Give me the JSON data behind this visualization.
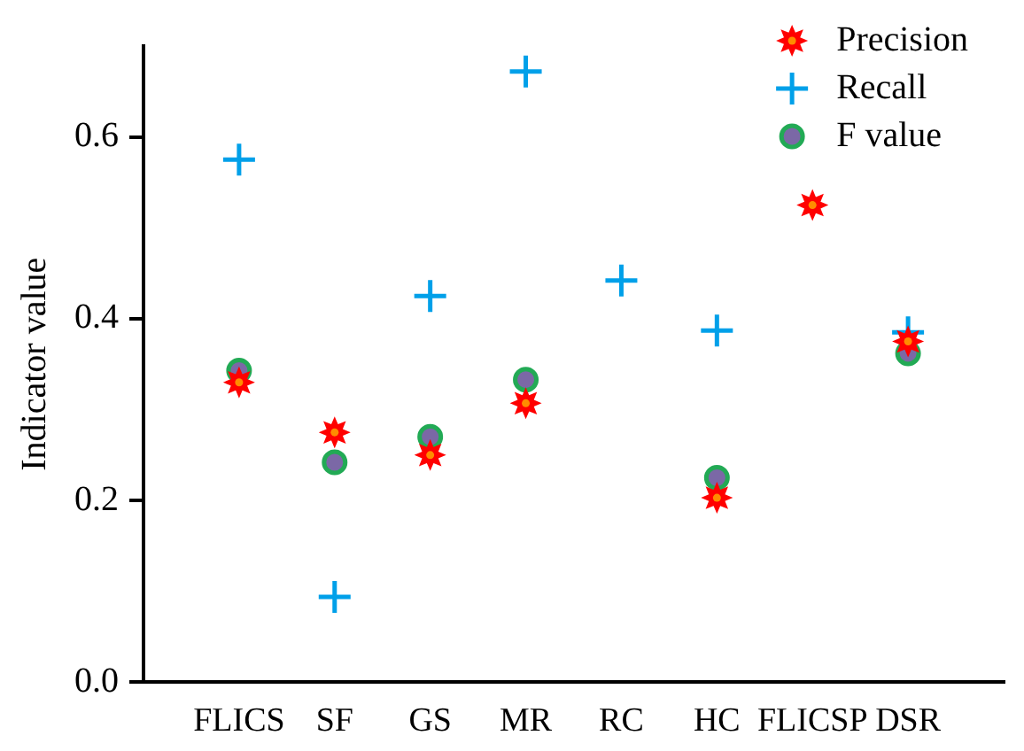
{
  "chart_data": {
    "type": "scatter",
    "ylabel": "Indicator value",
    "categories": [
      "FLICS",
      "SF",
      "GS",
      "MR",
      "RC",
      "HC",
      "FLICSP",
      "DSR"
    ],
    "series": [
      {
        "name": "Precision",
        "color": "#ff0000",
        "marker": "star",
        "values": [
          0.33,
          0.275,
          0.25,
          0.307,
          null,
          0.203,
          0.525,
          0.375
        ]
      },
      {
        "name": "Recall",
        "color": "#00a0e9",
        "marker": "cross",
        "values": [
          0.575,
          0.094,
          0.425,
          0.672,
          0.442,
          0.387,
          null,
          0.385
        ]
      },
      {
        "name": "F value",
        "color": "#7b68a6",
        "marker": "circle",
        "values": [
          0.343,
          0.242,
          0.27,
          0.333,
          null,
          0.225,
          null,
          0.362
        ]
      }
    ],
    "ylim": [
      0,
      0.7
    ],
    "yticks": [
      {
        "value": 0,
        "label": "0.0"
      },
      {
        "value": 0.2,
        "label": "0.2"
      },
      {
        "value": 0.4,
        "label": "0.4"
      },
      {
        "value": 0.6,
        "label": "0.6"
      }
    ],
    "grid": false,
    "legend": "top right"
  }
}
